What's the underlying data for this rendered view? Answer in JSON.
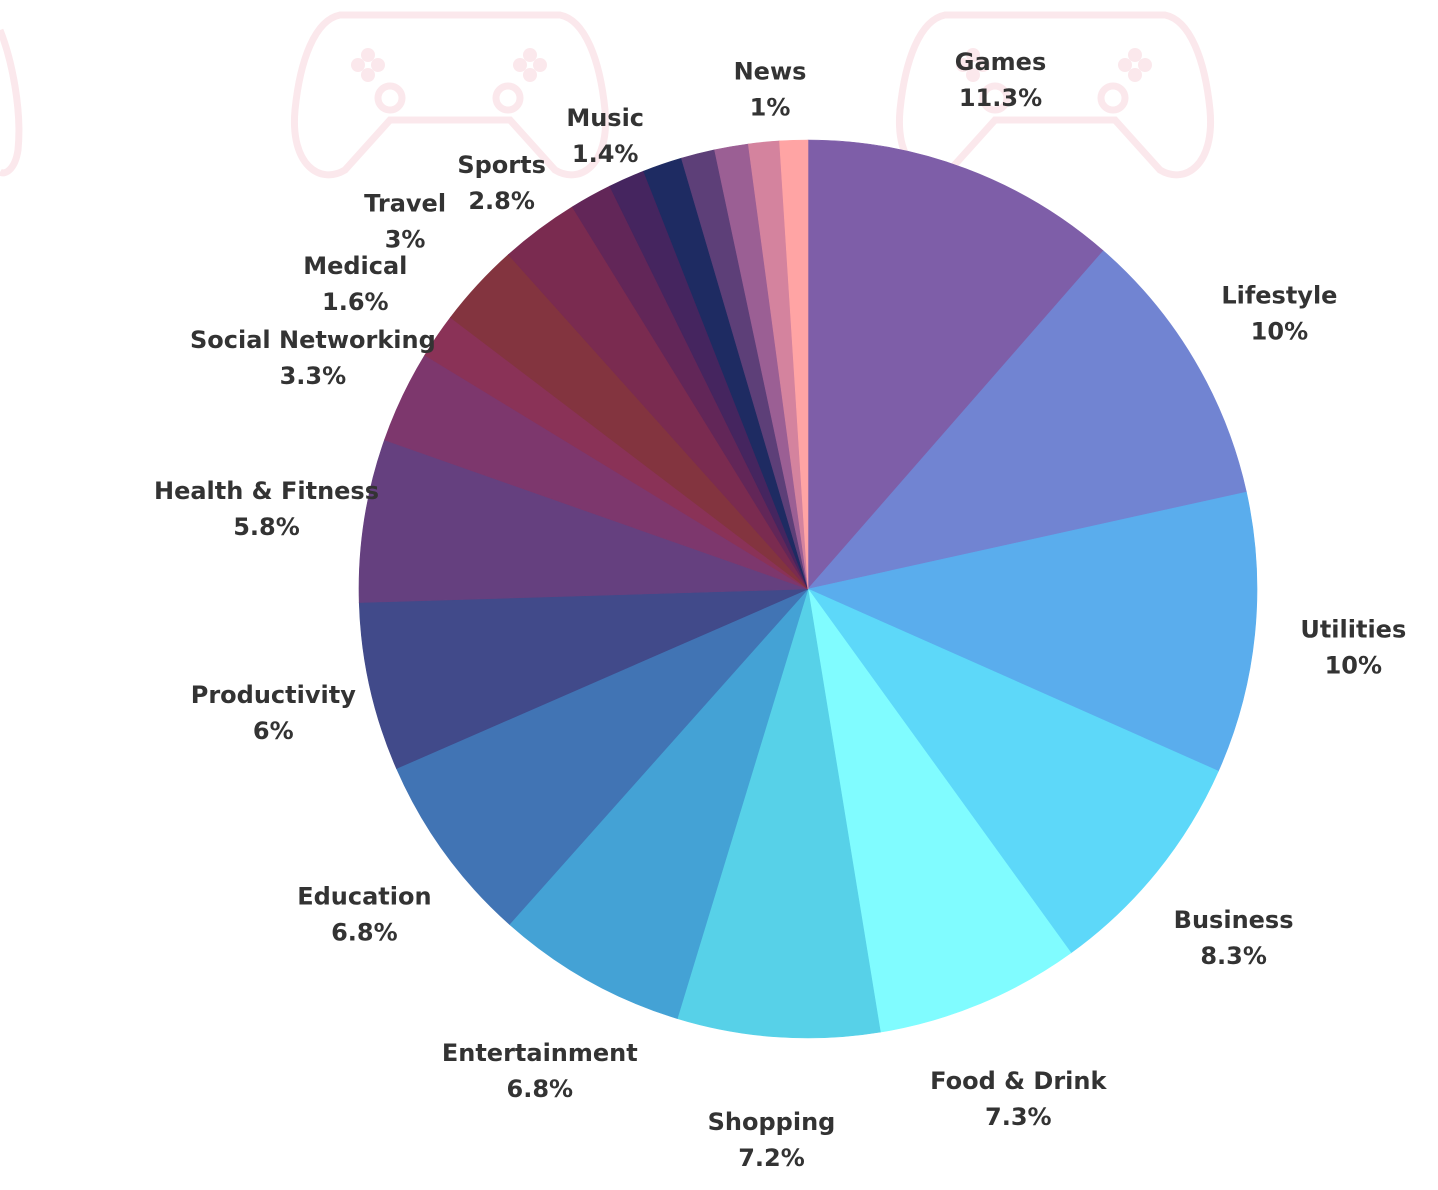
{
  "chart_data": {
    "type": "pie",
    "title": "",
    "start_angle_deg": 0,
    "direction": "clockwise",
    "legend": "none",
    "slices": [
      {
        "label": "Games",
        "value_label": "11.3%",
        "value": 11.3,
        "color": "#7e5ea8"
      },
      {
        "label": "Lifestyle",
        "value_label": "10%",
        "value": 10.0,
        "color": "#7184d2"
      },
      {
        "label": "Utilities",
        "value_label": "10%",
        "value": 10.0,
        "color": "#5aaded"
      },
      {
        "label": "Business",
        "value_label": "8.3%",
        "value": 8.3,
        "color": "#5dd8f9"
      },
      {
        "label": "Food & Drink",
        "value_label": "7.3%",
        "value": 7.3,
        "color": "#80fcff"
      },
      {
        "label": "Shopping",
        "value_label": "7.2%",
        "value": 7.2,
        "color": "#57d1e8"
      },
      {
        "label": "Entertainment",
        "value_label": "6.8%",
        "value": 6.8,
        "color": "#44a2d5"
      },
      {
        "label": "Education",
        "value_label": "6.8%",
        "value": 6.8,
        "color": "#4174b4"
      },
      {
        "label": "Productivity",
        "value_label": "6%",
        "value": 6.0,
        "color": "#414a8a"
      },
      {
        "label": "Health & Fitness",
        "value_label": "5.8%",
        "value": 5.8,
        "color": "#65407f"
      },
      {
        "label": "Social Networking",
        "value_label": "3.3%",
        "value": 3.3,
        "color": "#7d376d"
      },
      {
        "label": "Medical",
        "value_label": "1.6%",
        "value": 1.6,
        "color": "#8a3257"
      },
      {
        "label": "Travel",
        "value_label": "3%",
        "value": 3.0,
        "color": "#83343f"
      },
      {
        "label": "Sports",
        "value_label": "2.8%",
        "value": 2.8,
        "color": "#7a2b50"
      },
      {
        "label": "",
        "value_label": "",
        "value": 1.5,
        "color": "#622658"
      },
      {
        "label": "",
        "value_label": "",
        "value": 1.3,
        "color": "#45255f"
      },
      {
        "label": "Music",
        "value_label": "1.4%",
        "value": 1.4,
        "color": "#1e2b62"
      },
      {
        "label": "",
        "value_label": "",
        "value": 1.2,
        "color": "#5d3f78"
      },
      {
        "label": "",
        "value_label": "",
        "value": 1.2,
        "color": "#9b5f94"
      },
      {
        "label": "",
        "value_label": "",
        "value": 1.1,
        "color": "#d4839e"
      },
      {
        "label": "News",
        "value_label": "1%",
        "value": 1.0,
        "color": "#ffa4a4"
      }
    ]
  }
}
